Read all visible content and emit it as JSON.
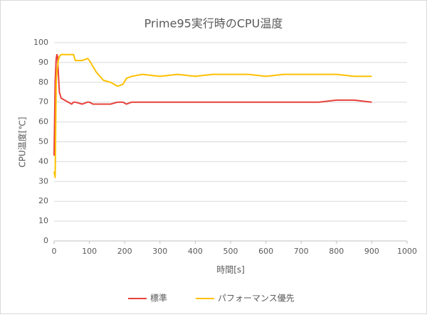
{
  "chart_data": {
    "type": "line",
    "title": "Prime95実行時のCPU温度",
    "x_label": "時間[s]",
    "y_label": "CPU温度[℃]",
    "x": [
      0,
      3,
      6,
      8,
      10,
      12,
      15,
      20,
      30,
      40,
      50,
      55,
      60,
      80,
      95,
      100,
      110,
      120,
      140,
      160,
      180,
      195,
      205,
      220,
      250,
      300,
      350,
      400,
      450,
      500,
      550,
      600,
      650,
      700,
      750,
      800,
      850,
      900
    ],
    "series": [
      {
        "name": "標準",
        "color": "#e8413c",
        "values": [
          43,
          80,
          92,
          94,
          93,
          85,
          75,
          72,
          71,
          70,
          69,
          70,
          70,
          69,
          70,
          70,
          69,
          69,
          69,
          69,
          70,
          70,
          69,
          70,
          70,
          70,
          70,
          70,
          70,
          70,
          70,
          70,
          70,
          70,
          70,
          71,
          71,
          70
        ]
      },
      {
        "name": "パフォーマンス優先",
        "color": "#ffc000",
        "values": [
          35,
          32,
          80,
          86,
          88,
          91,
          93,
          94,
          94,
          94,
          94,
          94,
          91,
          91,
          92,
          91,
          88,
          85,
          81,
          80,
          78,
          79,
          82,
          83,
          84,
          83,
          84,
          83,
          84,
          84,
          84,
          83,
          84,
          84,
          84,
          84,
          83,
          83
        ]
      }
    ],
    "xlim": [
      0,
      1000
    ],
    "xticks": [
      0,
      100,
      200,
      300,
      400,
      500,
      600,
      700,
      800,
      900,
      1000
    ],
    "ylim": [
      0,
      100
    ],
    "yticks": [
      0,
      10,
      20,
      30,
      40,
      50,
      60,
      70,
      80,
      90,
      100
    ],
    "grid": true,
    "legend": "bottom"
  }
}
